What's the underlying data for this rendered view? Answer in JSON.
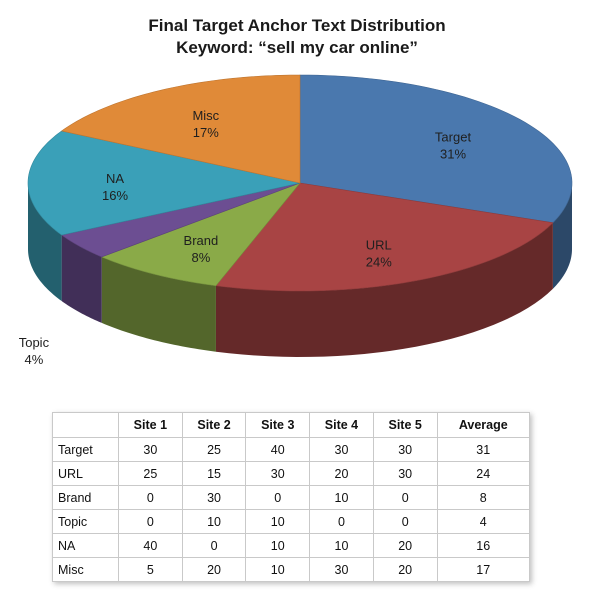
{
  "chart_data": [
    {
      "type": "pie",
      "title": "Final Target Anchor Text Distribution",
      "subtitle": "Keyword: “sell my car online”",
      "slices": [
        {
          "name": "Target",
          "value": 31,
          "label": "31%",
          "color": "#4A78AE"
        },
        {
          "name": "URL",
          "value": 24,
          "label": "24%",
          "color": "#A84444"
        },
        {
          "name": "Brand",
          "value": 8,
          "label": "8%",
          "color": "#8AAA48"
        },
        {
          "name": "Topic",
          "value": 4,
          "label": "4%",
          "color": "#6C4E92"
        },
        {
          "name": "NA",
          "value": 16,
          "label": "16%",
          "color": "#3AA0B8"
        },
        {
          "name": "Misc",
          "value": 17,
          "label": "17%",
          "color": "#E08A38"
        }
      ]
    },
    {
      "type": "table",
      "columns": [
        "",
        "Site 1",
        "Site 2",
        "Site 3",
        "Site 4",
        "Site 5",
        "Average"
      ],
      "rows": [
        [
          "Target",
          "30",
          "25",
          "40",
          "30",
          "30",
          "31"
        ],
        [
          "URL",
          "25",
          "15",
          "30",
          "20",
          "30",
          "24"
        ],
        [
          "Brand",
          "0",
          "30",
          "0",
          "10",
          "0",
          "8"
        ],
        [
          "Topic",
          "0",
          "10",
          "10",
          "0",
          "0",
          "4"
        ],
        [
          "NA",
          "40",
          "0",
          "10",
          "10",
          "20",
          "16"
        ],
        [
          "Misc",
          "5",
          "20",
          "10",
          "30",
          "20",
          "17"
        ]
      ]
    }
  ]
}
